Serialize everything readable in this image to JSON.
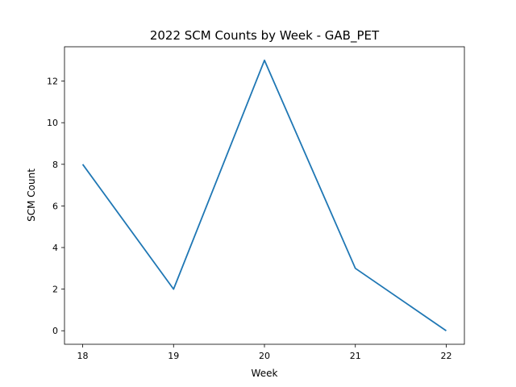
{
  "chart_data": {
    "type": "line",
    "title": "2022 SCM Counts by Week - GAB_PET",
    "xlabel": "Week",
    "ylabel": "SCM Count",
    "x": [
      18,
      19,
      20,
      21,
      22
    ],
    "series": [
      {
        "values": [
          8,
          2,
          13,
          3,
          0
        ],
        "color": "#1f77b4"
      }
    ],
    "xlim": [
      17.8,
      22.2
    ],
    "ylim": [
      -0.65,
      13.65
    ],
    "xticks": [
      18,
      19,
      20,
      21,
      22
    ],
    "yticks": [
      0,
      2,
      4,
      6,
      8,
      10,
      12
    ],
    "grid": false
  }
}
